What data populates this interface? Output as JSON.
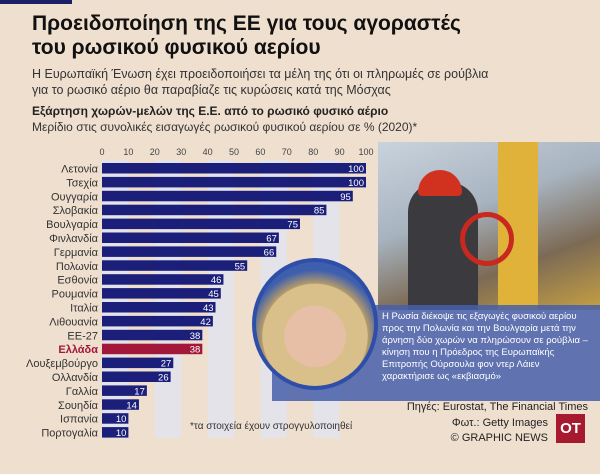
{
  "header": {
    "title_line1": "Προειδοποίηση της ΕΕ για τους αγοραστές",
    "title_line2": "του ρωσικού φυσικού αερίου",
    "subtitle_line1": "Η Ευρωπαϊκή Ένωση έχει προειδοποιήσει τα μέλη της ότι οι πληρωμές σε ρούβλια",
    "subtitle_line2": "για το ρωσικό αέριο θα παραβίαζε τις κυρώσεις κατά της Μόσχας"
  },
  "chart_data": {
    "type": "bar",
    "orientation": "horizontal",
    "title": "Εξάρτηση χωρών-μελών της Ε.Ε. από το ρωσικό φυσικό αέριο",
    "subtitle": "Μερίδιο στις συνολικές εισαγωγές ρωσικού φυσικού αερίου σε % (2020)*",
    "xlim": [
      0,
      100
    ],
    "ticks": [
      "0",
      "10",
      "20",
      "30",
      "40",
      "50",
      "60",
      "70",
      "80",
      "90",
      "100"
    ],
    "categories": [
      "Λετονία",
      "Τσεχία",
      "Ουγγαρία",
      "Σλοβακία",
      "Βουλγαρία",
      "Φινλανδία",
      "Γερμανία",
      "Πολωνία",
      "Εσθονία",
      "Ρουμανία",
      "Ιταλία",
      "Λιθουανία",
      "ΕΕ-27",
      "Ελλάδα",
      "Λουξεμβούργο",
      "Ολλανδία",
      "Γαλλία",
      "Σουηδία",
      "Ισπανία",
      "Πορτογαλία"
    ],
    "values": [
      100,
      100,
      95,
      85,
      75,
      67,
      66,
      55,
      46,
      45,
      43,
      42,
      38,
      38,
      27,
      26,
      17,
      14,
      10,
      10
    ],
    "highlight": "Ελλάδα",
    "bar_color": "#1b1f7a",
    "highlight_color": "#a3183a"
  },
  "caption": "Η Ρωσία διέκοψε τις εξαγωγές φυσικού αερίου προς την Πολωνία και την Βουλγαρία μετά την άρνηση δύο χωρών να πληρώσουν σε ρούβλια – κίνηση που η Πρόεδρος της Ευρωπαϊκής Επιτροπής Ούρσουλα φον ντερ Λάιεν χαρακτήρισε ως «εκβιασμό»",
  "footer": {
    "note": "*τα στοιχεία έχουν στρογγυλοποιηθεί",
    "sources": "Πηγές: Eurostat, The Financial Times",
    "photo_credit": "Φωτ.: Getty Images",
    "copyright": "© GRAPHIC NEWS",
    "logo": "OT"
  }
}
